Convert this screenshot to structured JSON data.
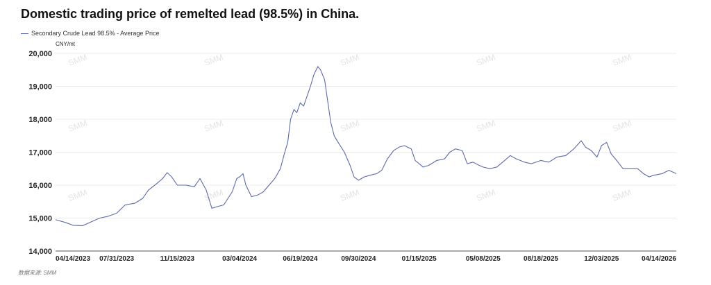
{
  "chart_data": {
    "type": "line",
    "title": "Domestic trading price of remelted lead (98.5%) in China.",
    "unit_label": "CNY/mt",
    "source": "数据来源: SMM",
    "watermark": "SMM",
    "xlabel": "",
    "ylabel": "",
    "ylim": [
      14000,
      20000
    ],
    "y_ticks": [
      "20,000",
      "19,000",
      "18,000",
      "17,000",
      "16,000",
      "15,000",
      "14,000"
    ],
    "x_ticks": [
      "04/14/2023",
      "07/31/2023",
      "11/15/2023",
      "03/04/2024",
      "06/19/2024",
      "09/30/2024",
      "01/15/2025",
      "05/08/2025",
      "08/18/2025",
      "12/03/2025",
      "04/14/2026"
    ],
    "grid": true,
    "legend_position": "top-left",
    "colors": {
      "line": "#5a6aa8",
      "grid": "#ebebeb",
      "axis": "#555555"
    },
    "series": [
      {
        "name": "Secondary Crude Lead 98.5% - Average Price",
        "points": [
          [
            "2023-04-14",
            14950
          ],
          [
            "2023-05-01",
            14870
          ],
          [
            "2023-05-15",
            14780
          ],
          [
            "2023-06-01",
            14770
          ],
          [
            "2023-06-15",
            14880
          ],
          [
            "2023-07-01",
            15000
          ],
          [
            "2023-07-15",
            15050
          ],
          [
            "2023-07-31",
            15150
          ],
          [
            "2023-08-15",
            15400
          ],
          [
            "2023-09-01",
            15450
          ],
          [
            "2023-09-15",
            15600
          ],
          [
            "2023-09-25",
            15850
          ],
          [
            "2023-10-10",
            16050
          ],
          [
            "2023-10-20",
            16200
          ],
          [
            "2023-10-28",
            16380
          ],
          [
            "2023-11-05",
            16250
          ],
          [
            "2023-11-15",
            16000
          ],
          [
            "2023-12-01",
            16000
          ],
          [
            "2023-12-15",
            15950
          ],
          [
            "2023-12-25",
            16200
          ],
          [
            "2024-01-05",
            15850
          ],
          [
            "2024-01-15",
            15300
          ],
          [
            "2024-01-25",
            15350
          ],
          [
            "2024-02-05",
            15400
          ],
          [
            "2024-02-20",
            15800
          ],
          [
            "2024-02-28",
            16200
          ],
          [
            "2024-03-04",
            16250
          ],
          [
            "2024-03-10",
            16350
          ],
          [
            "2024-03-15",
            16000
          ],
          [
            "2024-03-25",
            15650
          ],
          [
            "2024-04-05",
            15700
          ],
          [
            "2024-04-15",
            15800
          ],
          [
            "2024-04-25",
            16000
          ],
          [
            "2024-05-05",
            16200
          ],
          [
            "2024-05-15",
            16500
          ],
          [
            "2024-05-22",
            16950
          ],
          [
            "2024-05-28",
            17300
          ],
          [
            "2024-06-02",
            18000
          ],
          [
            "2024-06-08",
            18300
          ],
          [
            "2024-06-13",
            18200
          ],
          [
            "2024-06-19",
            18500
          ],
          [
            "2024-06-25",
            18400
          ],
          [
            "2024-07-01",
            18700
          ],
          [
            "2024-07-07",
            19000
          ],
          [
            "2024-07-13",
            19350
          ],
          [
            "2024-07-20",
            19600
          ],
          [
            "2024-07-25",
            19500
          ],
          [
            "2024-08-01",
            19200
          ],
          [
            "2024-08-07",
            18500
          ],
          [
            "2024-08-12",
            17900
          ],
          [
            "2024-08-18",
            17500
          ],
          [
            "2024-08-25",
            17300
          ],
          [
            "2024-09-05",
            17000
          ],
          [
            "2024-09-15",
            16600
          ],
          [
            "2024-09-22",
            16250
          ],
          [
            "2024-09-30",
            16150
          ],
          [
            "2024-10-10",
            16250
          ],
          [
            "2024-10-20",
            16300
          ],
          [
            "2024-11-01",
            16350
          ],
          [
            "2024-11-10",
            16450
          ],
          [
            "2024-11-20",
            16800
          ],
          [
            "2024-12-01",
            17050
          ],
          [
            "2024-12-10",
            17150
          ],
          [
            "2024-12-20",
            17200
          ],
          [
            "2025-01-01",
            17100
          ],
          [
            "2025-01-08",
            16750
          ],
          [
            "2025-01-15",
            16650
          ],
          [
            "2025-01-22",
            16550
          ],
          [
            "2025-02-01",
            16600
          ],
          [
            "2025-02-15",
            16750
          ],
          [
            "2025-03-01",
            16800
          ],
          [
            "2025-03-10",
            17000
          ],
          [
            "2025-03-20",
            17100
          ],
          [
            "2025-04-01",
            17050
          ],
          [
            "2025-04-10",
            16650
          ],
          [
            "2025-04-20",
            16700
          ],
          [
            "2025-05-01",
            16600
          ],
          [
            "2025-05-08",
            16550
          ],
          [
            "2025-05-20",
            16500
          ],
          [
            "2025-06-01",
            16550
          ],
          [
            "2025-06-15",
            16750
          ],
          [
            "2025-06-25",
            16900
          ],
          [
            "2025-07-05",
            16800
          ],
          [
            "2025-07-20",
            16700
          ],
          [
            "2025-08-01",
            16650
          ],
          [
            "2025-08-18",
            16750
          ],
          [
            "2025-09-01",
            16700
          ],
          [
            "2025-09-15",
            16850
          ],
          [
            "2025-10-01",
            16900
          ],
          [
            "2025-10-15",
            17100
          ],
          [
            "2025-10-28",
            17350
          ],
          [
            "2025-11-05",
            17150
          ],
          [
            "2025-11-15",
            17050
          ],
          [
            "2025-11-25",
            16850
          ],
          [
            "2025-12-03",
            17200
          ],
          [
            "2025-12-12",
            17300
          ],
          [
            "2025-12-20",
            16950
          ],
          [
            "2026-01-01",
            16700
          ],
          [
            "2026-01-10",
            16500
          ],
          [
            "2026-01-25",
            16500
          ],
          [
            "2026-02-05",
            16500
          ],
          [
            "2026-02-15",
            16350
          ],
          [
            "2026-02-25",
            16250
          ],
          [
            "2026-03-05",
            16300
          ],
          [
            "2026-03-20",
            16350
          ],
          [
            "2026-04-01",
            16450
          ],
          [
            "2026-04-14",
            16350
          ]
        ]
      }
    ]
  }
}
